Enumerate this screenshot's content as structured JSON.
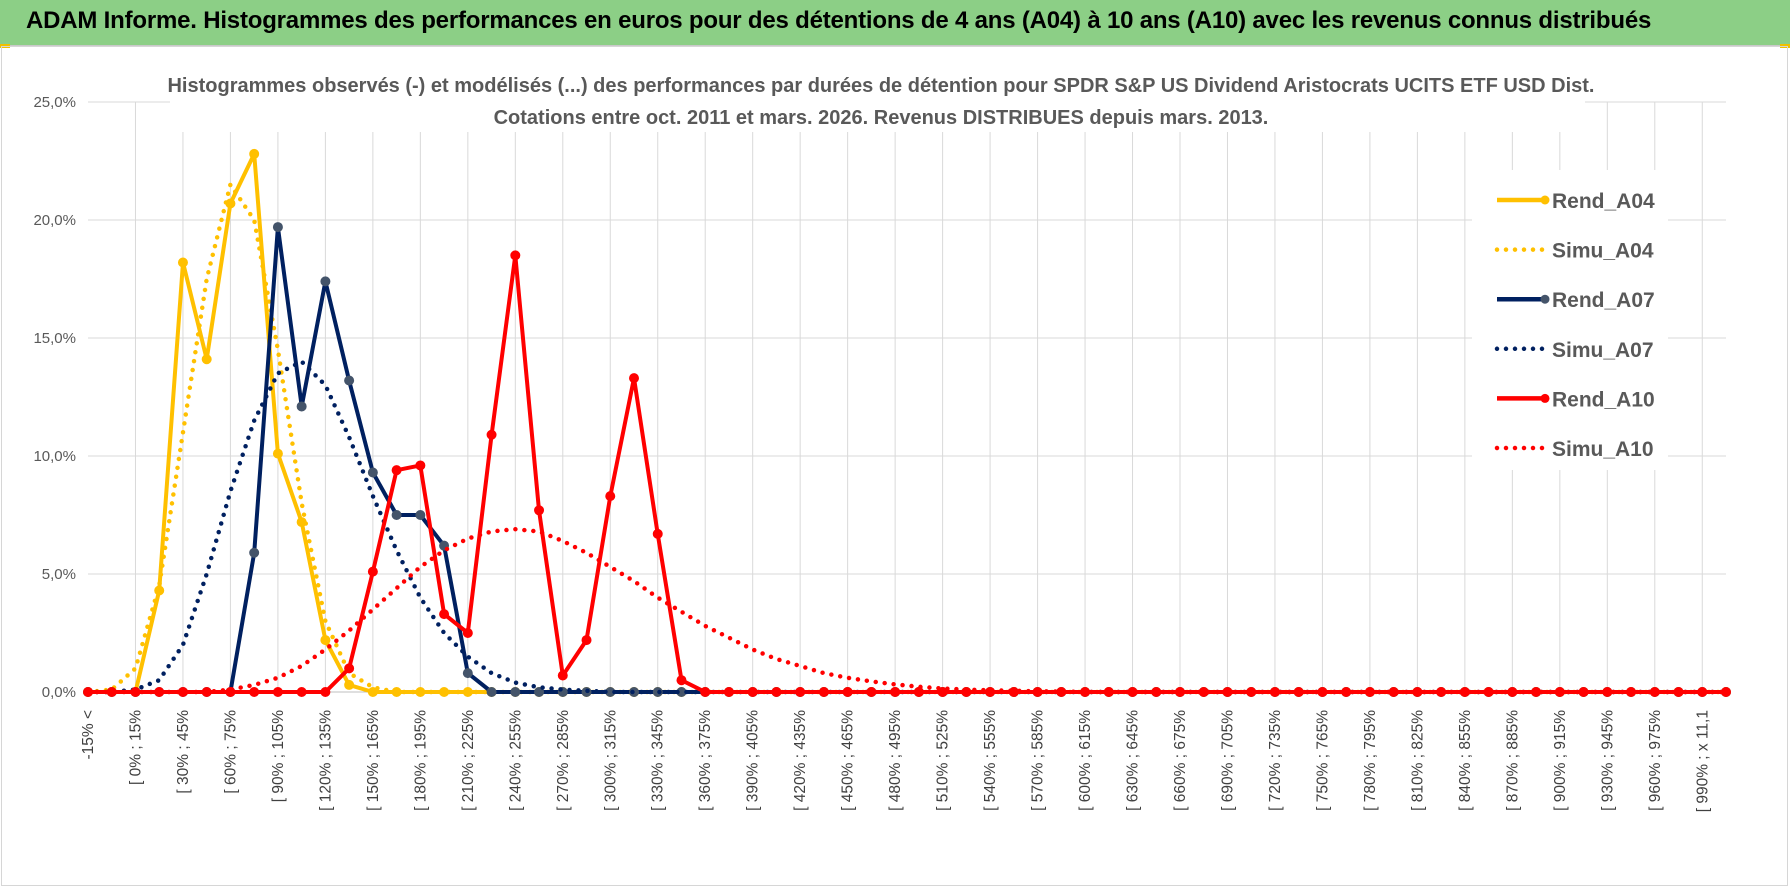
{
  "header": {
    "title": "ADAM Informe. Histogrammes des performances en euros pour des détentions de 4 ans (A04) à 10 ans (A10) avec les revenus connus distribués"
  },
  "chart_data": {
    "type": "line",
    "title": [
      "Histogrammes observés (-) et modélisés (...) des performances par durées de détention pour SPDR S&P US Dividend Aristocrats UCITS ETF USD Dist.",
      "Cotations entre oct. 2011 et mars. 2026. Revenus DISTRIBUES depuis mars. 2013."
    ],
    "xlabel": "",
    "ylabel": "",
    "ylim": [
      0,
      25
    ],
    "yticks": [
      "0,0%",
      "5,0%",
      "10,0%",
      "15,0%",
      "20,0%",
      "25,0%"
    ],
    "legend_position": "right",
    "grid": true,
    "categories": [
      "-15% <",
      "[ -15% ; 0%",
      "[ 0% ; 15%",
      "[ 15% ; 30%",
      "[ 30% ; 45%",
      "[ 45% ; 60%",
      "[ 60% ; 75%",
      "[ 75% ; 90%",
      "[ 90% ; 105%",
      "[ 105% ; 120%",
      "[ 120% ; 135%",
      "[ 135% ; 150%",
      "[ 150% ; 165%",
      "[ 165% ; 180%",
      "[ 180% ; 195%",
      "[ 195% ; 210%",
      "[ 210% ; 225%",
      "[ 225% ; 240%",
      "[ 240% ; 255%",
      "[ 255% ; 270%",
      "[ 270% ; 285%",
      "[ 285% ; 300%",
      "[ 300% ; 315%",
      "[ 315% ; 330%",
      "[ 330% ; 345%",
      "[ 345% ; 360%",
      "[ 360% ; 375%",
      "[ 375% ; 390%",
      "[ 390% ; 405%",
      "[ 405% ; 420%",
      "[ 420% ; 435%",
      "[ 435% ; 450%",
      "[ 450% ; 465%",
      "[ 465% ; 480%",
      "[ 480% ; 495%",
      "[ 495% ; 510%",
      "[ 510% ; 525%",
      "[ 525% ; 540%",
      "[ 540% ; 555%",
      "[ 555% ; 570%",
      "[ 570% ; 585%",
      "[ 585% ; 600%",
      "[ 600% ; 615%",
      "[ 615% ; 630%",
      "[ 630% ; 645%",
      "[ 645% ; 660%",
      "[ 660% ; 675%",
      "[ 675% ; 690%",
      "[ 690% ; 705%",
      "[ 705% ; 720%",
      "[ 720% ; 735%",
      "[ 735% ; 750%",
      "[ 750% ; 765%",
      "[ 765% ; 780%",
      "[ 780% ; 795%",
      "[ 795% ; 810%",
      "[ 810% ; 825%",
      "[ 825% ; 840%",
      "[ 840% ; 855%",
      "[ 855% ; 870%",
      "[ 870% ; 885%",
      "[ 885% ; 900%",
      "[ 900% ; 915%",
      "[ 915% ; 930%",
      "[ 930% ; 945%",
      "[ 945% ; 960%",
      "[ 960% ; 975%",
      "[ 975% ; 990%",
      "[ 990% ; x 11,1",
      "x 11,1 <"
    ],
    "visible_tick_step": 2,
    "series": [
      {
        "name": "Rend_A04",
        "color": "#ffc000",
        "style": "solid",
        "markers": true,
        "values": [
          0,
          0,
          0,
          4.3,
          18.2,
          14.1,
          20.7,
          22.8,
          10.1,
          7.2,
          2.2,
          0.3,
          0,
          0,
          0,
          0,
          0,
          0,
          0,
          0,
          0,
          0,
          0,
          0,
          0,
          0,
          0,
          0,
          0,
          0,
          0,
          0,
          0,
          0,
          0,
          0,
          0,
          0,
          0,
          0,
          0,
          0,
          0,
          0,
          0,
          0,
          0,
          0,
          0,
          0,
          0,
          0,
          0,
          0,
          0,
          0,
          0,
          0,
          0,
          0,
          0,
          0,
          0,
          0,
          0,
          0,
          0,
          0,
          0,
          0
        ]
      },
      {
        "name": "Simu_A04",
        "color": "#ffc000",
        "style": "dotted",
        "markers": false,
        "values": [
          0,
          0.1,
          1.0,
          4.5,
          11.0,
          17.5,
          21.5,
          20.0,
          14.5,
          8.0,
          3.0,
          0.8,
          0.2,
          0,
          0,
          0,
          0,
          0,
          0,
          0,
          0,
          0,
          0,
          0,
          0,
          0,
          0,
          0,
          0,
          0,
          0,
          0,
          0,
          0,
          0,
          0,
          0,
          0,
          0,
          0,
          0,
          0,
          0,
          0,
          0,
          0,
          0,
          0,
          0,
          0,
          0,
          0,
          0,
          0,
          0,
          0,
          0,
          0,
          0,
          0,
          0,
          0,
          0,
          0,
          0,
          0,
          0,
          0,
          0,
          0
        ]
      },
      {
        "name": "Rend_A07",
        "color": "#002060",
        "style": "solid",
        "markers": true,
        "values": [
          0,
          0,
          0,
          0,
          0,
          0,
          0,
          5.9,
          19.7,
          12.1,
          17.4,
          13.2,
          9.3,
          7.5,
          7.5,
          6.2,
          0.8,
          0,
          0,
          0,
          0,
          0,
          0,
          0,
          0,
          0,
          0,
          0,
          0,
          0,
          0,
          0,
          0,
          0,
          0,
          0,
          0,
          0,
          0,
          0,
          0,
          0,
          0,
          0,
          0,
          0,
          0,
          0,
          0,
          0,
          0,
          0,
          0,
          0,
          0,
          0,
          0,
          0,
          0,
          0,
          0,
          0,
          0,
          0,
          0,
          0,
          0,
          0,
          0,
          0
        ]
      },
      {
        "name": "Simu_A07",
        "color": "#002060",
        "style": "dotted",
        "markers": false,
        "values": [
          0,
          0,
          0.1,
          0.5,
          2.0,
          5.0,
          8.5,
          11.5,
          13.5,
          14.0,
          13.0,
          10.8,
          8.3,
          6.0,
          4.0,
          2.5,
          1.5,
          0.8,
          0.4,
          0.2,
          0.1,
          0.05,
          0,
          0,
          0,
          0,
          0,
          0,
          0,
          0,
          0,
          0,
          0,
          0,
          0,
          0,
          0,
          0,
          0,
          0,
          0,
          0,
          0,
          0,
          0,
          0,
          0,
          0,
          0,
          0,
          0,
          0,
          0,
          0,
          0,
          0,
          0,
          0,
          0,
          0,
          0,
          0,
          0,
          0,
          0,
          0,
          0,
          0,
          0,
          0
        ]
      },
      {
        "name": "Rend_A10",
        "color": "#ff0000",
        "style": "solid",
        "markers": true,
        "values": [
          0,
          0,
          0,
          0,
          0,
          0,
          0,
          0,
          0,
          0,
          0,
          1.0,
          5.1,
          9.4,
          9.6,
          3.3,
          2.5,
          10.9,
          18.5,
          7.7,
          0.7,
          2.2,
          8.3,
          13.3,
          6.7,
          0.5,
          0,
          0,
          0,
          0,
          0,
          0,
          0,
          0,
          0,
          0,
          0,
          0,
          0,
          0,
          0,
          0,
          0,
          0,
          0,
          0,
          0,
          0,
          0,
          0,
          0,
          0,
          0,
          0,
          0,
          0,
          0,
          0,
          0,
          0,
          0,
          0,
          0,
          0,
          0,
          0,
          0,
          0,
          0,
          0
        ]
      },
      {
        "name": "Simu_A10",
        "color": "#ff0000",
        "style": "dotted",
        "markers": false,
        "values": [
          0,
          0,
          0,
          0,
          0,
          0,
          0.1,
          0.3,
          0.6,
          1.1,
          1.8,
          2.6,
          3.5,
          4.4,
          5.3,
          6.0,
          6.5,
          6.8,
          6.9,
          6.8,
          6.4,
          5.9,
          5.3,
          4.7,
          4.0,
          3.4,
          2.8,
          2.3,
          1.8,
          1.4,
          1.1,
          0.8,
          0.6,
          0.45,
          0.32,
          0.22,
          0.15,
          0.1,
          0.07,
          0.05,
          0.03,
          0.02,
          0,
          0,
          0,
          0,
          0,
          0,
          0,
          0,
          0,
          0,
          0,
          0,
          0,
          0,
          0,
          0,
          0,
          0,
          0,
          0,
          0,
          0,
          0,
          0,
          0,
          0,
          0,
          0
        ]
      }
    ]
  }
}
